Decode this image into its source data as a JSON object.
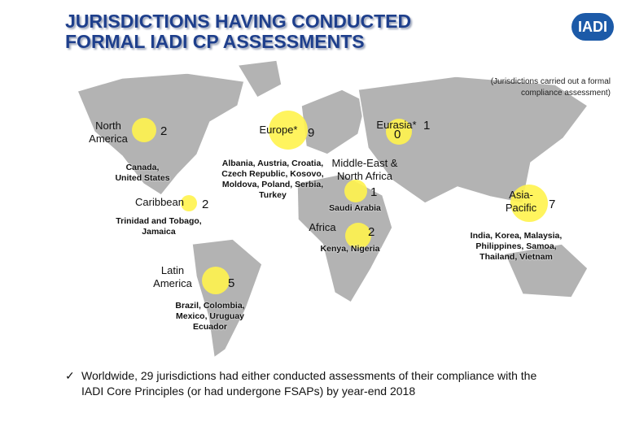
{
  "header": {
    "title": [
      "JURISDICTIONS HAVING CONDUCTED",
      "FORMAL IADI CP ASSESSMENTS"
    ],
    "logo": "IADI"
  },
  "note": [
    "(Jurisdictions carried out a formal",
    "compliance assessment)"
  ],
  "regions": [
    {
      "name": [
        "North",
        "America"
      ],
      "count": 2,
      "members": [
        "Canada,",
        "United States"
      ]
    },
    {
      "name": [
        "Caribbean"
      ],
      "count": 2,
      "members": [
        "Trinidad and Tobago,",
        "Jamaica"
      ]
    },
    {
      "name": [
        "Latin",
        "America"
      ],
      "count": 5,
      "members": [
        "Brazil, Colombia,",
        "Mexico, Uruguay",
        "Ecuador"
      ]
    },
    {
      "name": [
        "Europe*"
      ],
      "count": 9,
      "members": [
        "Albania, Austria, Croatia,",
        "Czech Republic, Kosovo,",
        "Moldova, Poland, Serbia,",
        "Turkey"
      ]
    },
    {
      "name": [
        "Eurasia*"
      ],
      "count": 1,
      "second_count": 0,
      "members": []
    },
    {
      "name": [
        "Middle-East &",
        "North Africa"
      ],
      "count": 1,
      "members": [
        "Saudi Arabia"
      ]
    },
    {
      "name": [
        "Africa"
      ],
      "count": 2,
      "members": [
        "Kenya, Nigeria"
      ]
    },
    {
      "name": [
        "Asia-",
        "Pacific"
      ],
      "count": 7,
      "members": [
        "India, Korea, Malaysia,",
        "Philippines, Samoa,",
        "Thailand, Vietnam"
      ]
    }
  ],
  "footer": {
    "bullet": "✓",
    "text": [
      "Worldwide, 29 jurisdictions had either conducted assessments of their compliance with the",
      "IADI Core Principles (or had undergone FSAPs) by year-end 2018"
    ]
  }
}
